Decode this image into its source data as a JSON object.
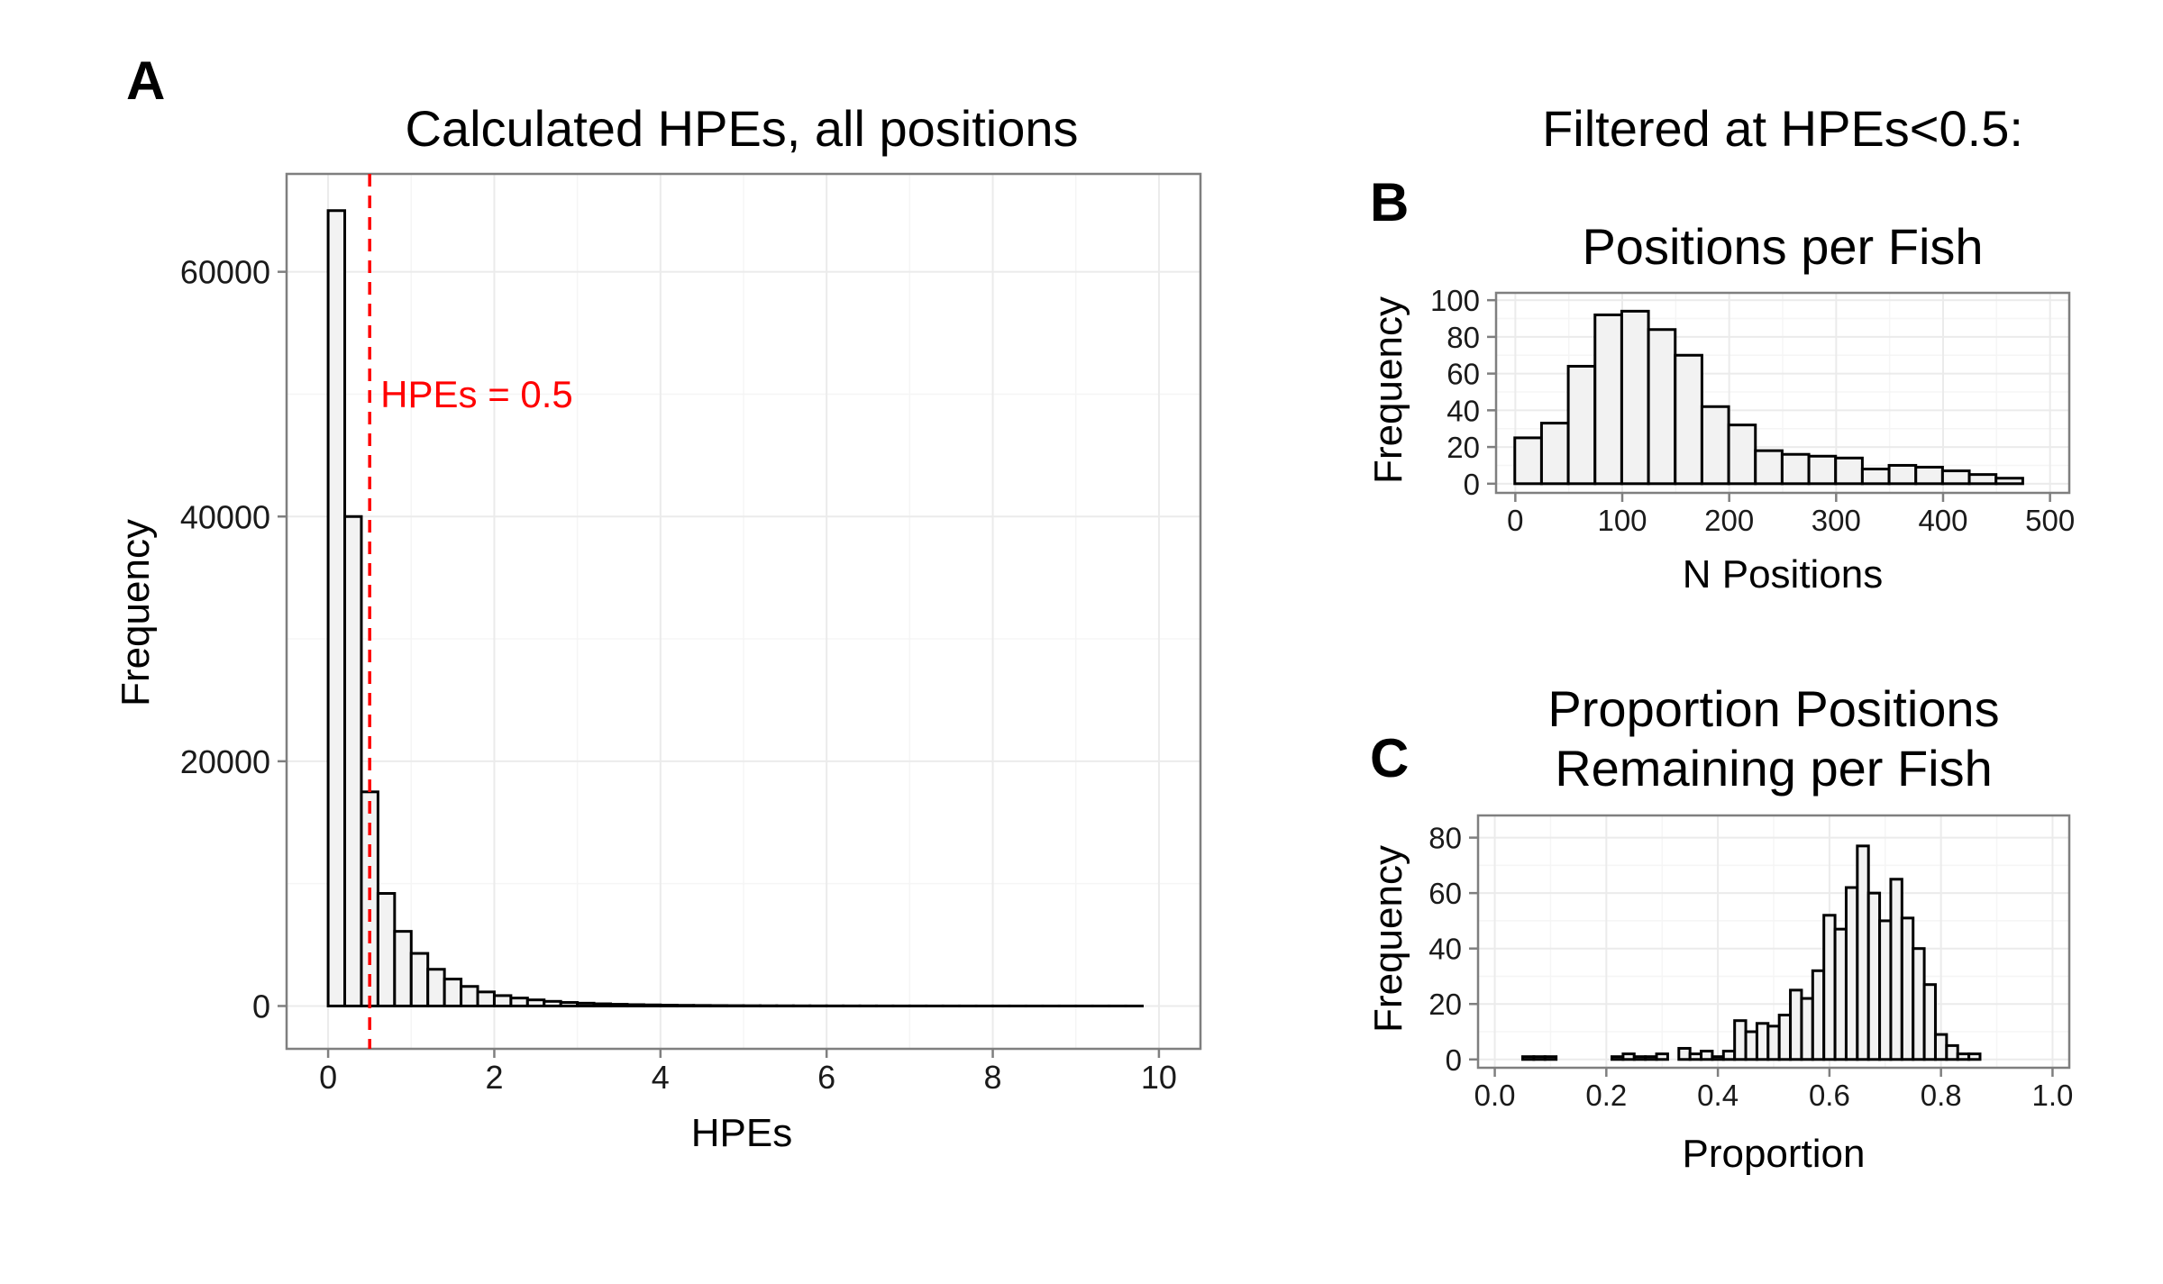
{
  "figure": {
    "header_right": "Filtered at HPEs<0.5:"
  },
  "chart_data": [
    {
      "panel": "A",
      "type": "bar",
      "title": "Calculated HPEs, all positions",
      "xlabel": "HPEs",
      "ylabel": "Frequency",
      "xlim": [
        -0.5,
        10.5
      ],
      "ylim": [
        -3500,
        68000
      ],
      "xticks": [
        0,
        2,
        4,
        6,
        8,
        10
      ],
      "yticks": [
        0,
        20000,
        40000,
        60000
      ],
      "bin_width": 0.2,
      "bin_start": 0.1,
      "values": [
        65000,
        40000,
        17500,
        9200,
        6100,
        4300,
        3000,
        2200,
        1600,
        1150,
        850,
        650,
        500,
        380,
        290,
        230,
        180,
        140,
        110,
        90,
        70,
        55,
        45,
        35,
        28,
        22,
        18,
        15,
        12,
        10,
        8,
        7,
        6,
        5,
        4,
        4,
        3,
        3,
        2,
        2,
        2,
        1,
        1,
        1,
        1,
        1,
        1,
        1,
        1
      ],
      "annotation": {
        "label": "HPEs = 0.5",
        "x": 0.5,
        "color": "#ff0000",
        "linetype": "dashed"
      },
      "grid": true
    },
    {
      "panel": "B",
      "type": "bar",
      "title": "Positions per Fish",
      "xlabel": "N Positions",
      "ylabel": "Frequency",
      "xlim": [
        -18,
        518
      ],
      "ylim": [
        -5,
        104
      ],
      "xticks": [
        0,
        100,
        200,
        300,
        400,
        500
      ],
      "yticks": [
        0,
        20,
        40,
        60,
        80,
        100
      ],
      "bin_width": 25,
      "bin_start": 12,
      "values": [
        25,
        33,
        64,
        92,
        94,
        84,
        70,
        42,
        32,
        18,
        16,
        15,
        14,
        8,
        10,
        9,
        7,
        5,
        3
      ],
      "grid": true
    },
    {
      "panel": "C",
      "type": "bar",
      "title": "Proportion Positions\nRemaining per Fish",
      "title_lines": [
        "Proportion Positions",
        "Remaining per Fish"
      ],
      "xlabel": "Proportion",
      "ylabel": "Frequency",
      "xlim": [
        -0.03,
        1.03
      ],
      "ylim": [
        -3,
        88
      ],
      "xticks": [
        0.0,
        0.2,
        0.4,
        0.6,
        0.8,
        1.0
      ],
      "xtick_labels": [
        "0.0",
        "0.2",
        "0.4",
        "0.6",
        "0.8",
        "1.0"
      ],
      "yticks": [
        0,
        20,
        40,
        60,
        80
      ],
      "bin_width": 0.02,
      "bin_start": 0.02,
      "values": [
        0,
        0,
        1,
        1,
        1,
        0,
        0,
        0,
        0,
        0,
        1,
        2,
        1,
        1,
        2,
        0,
        4,
        2,
        3,
        1,
        3,
        14,
        10,
        13,
        12,
        16,
        25,
        22,
        32,
        52,
        47,
        62,
        77,
        60,
        50,
        65,
        51,
        40,
        27,
        9,
        5,
        2,
        2,
        0,
        0,
        0,
        0,
        0
      ],
      "grid": true
    }
  ]
}
